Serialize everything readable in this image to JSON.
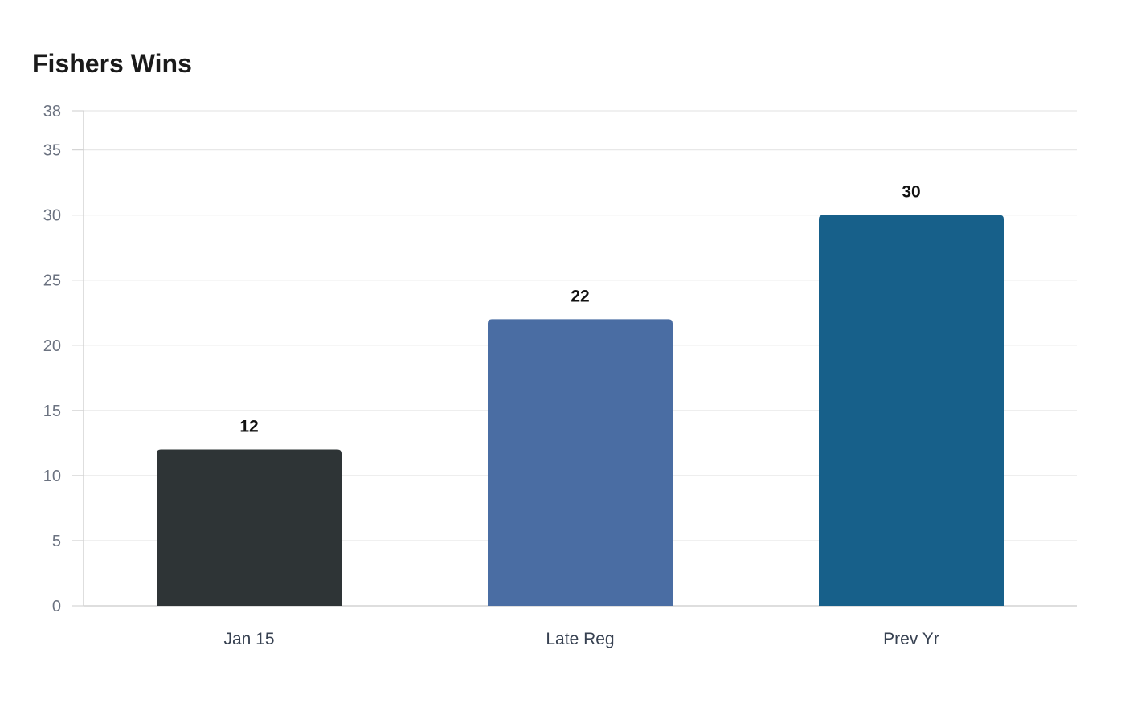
{
  "chart_data": {
    "type": "bar",
    "title": "Fishers Wins",
    "xlabel": "",
    "ylabel": "",
    "categories": [
      "Jan 15",
      "Late Reg",
      "Prev Yr"
    ],
    "values": [
      12,
      22,
      30
    ],
    "data_labels": [
      "12",
      "22",
      "30"
    ],
    "colors": [
      "#2e3436",
      "#4a6da3",
      "#17608a"
    ],
    "ylim": [
      0,
      38
    ],
    "yticks": [
      0,
      5,
      10,
      15,
      20,
      25,
      30,
      35,
      38
    ],
    "grid": true,
    "legend": "none"
  },
  "style": {
    "grid_color": "#e8e8e8",
    "axis_color": "#d4d4d4"
  }
}
